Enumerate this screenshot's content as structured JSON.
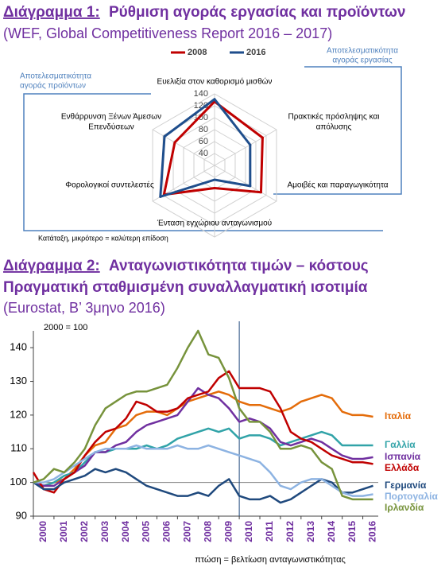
{
  "chart_data": [
    {
      "type": "radar",
      "label": "Διάγραμμα 1:",
      "title": "Ρύθμιση αγοράς εργασίας και προϊόντων",
      "subtitle": "(WEF, Global Competitiveness Report 2016 – 2017)",
      "axes": [
        [
          "Ευελιξία στον καθορισμό μισθών"
        ],
        [
          "Πρακτικές πρόσληψης και",
          "απόλυσης"
        ],
        [
          "Αμοιβές και παραγωγικότητα"
        ],
        [
          "Ένταση εγχώριου ανταγωνισμού"
        ],
        [
          "Φορολογικοί συντελεστές"
        ],
        [
          "Ενθάρρυνση Ξένων Άμεσων",
          "Επενδύσεων"
        ]
      ],
      "groups": [
        [
          "Αποτελεσματικότητα",
          "αγοράς εργασίας"
        ],
        [
          "Αποτελεσματικότητα",
          "αγοράς προϊόντων"
        ]
      ],
      "note": "Κατάταξη, μικρότερο = καλύτερη επίδοση",
      "rlim": [
        20,
        140
      ],
      "rticks": [
        40,
        60,
        80,
        100,
        120,
        140
      ],
      "series": [
        {
          "name": "2008",
          "color": "#c00000",
          "values": [
            127,
            113,
            110,
            58,
            118,
            97
          ]
        },
        {
          "name": "2016",
          "color": "#1f4e8c",
          "values": [
            131,
            89,
            89,
            44,
            125,
            117
          ]
        }
      ]
    },
    {
      "type": "line",
      "label": "Διάγραμμα 2:",
      "title": "Ανταγωνιστικότητα τιμών – κόστους",
      "subtitle": "Πραγματική σταθμισμένη συναλλαγματική ισοτιμία",
      "source": "(Eurostat, Β’ 3μηνο 2016)",
      "unit_note": "2000 = 100",
      "footnote": "πτώση = βελτίωση ανταγωνιστικότητας",
      "x": [
        2000,
        2000.5,
        2001,
        2001.5,
        2002,
        2002.5,
        2003,
        2003.5,
        2004,
        2004.5,
        2005,
        2005.5,
        2006,
        2006.5,
        2007,
        2007.5,
        2008,
        2008.5,
        2009,
        2009.5,
        2010,
        2010.5,
        2011,
        2011.5,
        2012,
        2012.5,
        2013,
        2013.5,
        2014,
        2014.5,
        2015,
        2015.5,
        2016,
        2016.5
      ],
      "xlim": [
        2000,
        2016.75
      ],
      "xticks": [
        2000,
        2001,
        2002,
        2003,
        2004,
        2005,
        2006,
        2007,
        2008,
        2009,
        2010,
        2011,
        2012,
        2013,
        2014,
        2015,
        2016
      ],
      "ylim": [
        90,
        145
      ],
      "yticks": [
        90,
        100,
        110,
        120,
        130,
        140
      ],
      "vline": 2010,
      "hline": 100,
      "series": [
        {
          "name": "Ιταλία",
          "color": "#e46c0a",
          "values": [
            100,
            99,
            100,
            101,
            104,
            108,
            111,
            112,
            116,
            117,
            120,
            121,
            121,
            120,
            122,
            124,
            125,
            126,
            127,
            126,
            124,
            123,
            123,
            122,
            121,
            122,
            124,
            125,
            126,
            125,
            121,
            120,
            120,
            119.5
          ]
        },
        {
          "name": "Γαλλία",
          "color": "#31a3a8",
          "values": [
            100,
            99,
            100,
            102,
            103,
            106,
            109,
            109,
            110,
            110,
            110,
            111,
            110,
            111,
            113,
            114,
            115,
            116,
            115,
            116,
            113,
            114,
            114,
            113,
            111,
            112,
            113,
            114,
            115,
            114,
            111,
            111,
            111,
            111
          ]
        },
        {
          "name": "Ισπανία",
          "color": "#7030a0",
          "values": [
            100,
            99,
            99,
            101,
            103,
            105,
            109,
            109,
            111,
            112,
            115,
            117,
            118,
            119,
            120,
            124,
            128,
            126,
            125,
            122,
            118,
            119,
            118,
            116,
            112,
            111,
            112,
            113,
            112,
            110,
            108,
            107,
            107,
            107.5
          ]
        },
        {
          "name": "Ελλάδα",
          "color": "#c00000",
          "values": [
            103,
            98,
            97,
            101,
            103,
            108,
            112,
            115,
            116,
            119,
            124,
            123,
            121,
            121,
            122,
            125,
            126,
            127,
            131,
            133,
            128,
            128,
            128,
            127,
            122,
            115,
            113,
            112,
            110,
            108,
            107,
            106,
            106,
            105.5
          ]
        },
        {
          "name": "Γερμανία",
          "color": "#1f497d",
          "values": [
            100,
            98,
            98,
            100,
            101,
            102,
            104,
            103,
            104,
            103,
            101,
            99,
            98,
            97,
            96,
            96,
            97,
            96,
            99,
            101,
            96,
            95,
            95,
            96,
            94,
            95,
            97,
            99,
            101,
            100,
            97,
            97,
            98,
            99
          ]
        },
        {
          "name": "Πορτογαλία",
          "color": "#8db3e2",
          "values": [
            100,
            100,
            101,
            103,
            105,
            107,
            109,
            110,
            110,
            110,
            111,
            110,
            110,
            110,
            111,
            110,
            110,
            111,
            110,
            109,
            108,
            107,
            106,
            103,
            99,
            98,
            100,
            101,
            101,
            99,
            97,
            96,
            96,
            96.5
          ]
        },
        {
          "name": "Ιρλανδία",
          "color": "#77933c",
          "values": [
            100,
            101,
            104,
            103,
            106,
            110,
            117,
            122,
            124,
            126,
            127,
            127,
            128,
            129,
            134,
            140,
            145,
            138,
            137,
            131,
            122,
            118,
            118,
            115,
            110,
            110,
            111,
            110,
            106,
            104,
            96,
            95,
            95,
            95
          ]
        }
      ]
    }
  ]
}
